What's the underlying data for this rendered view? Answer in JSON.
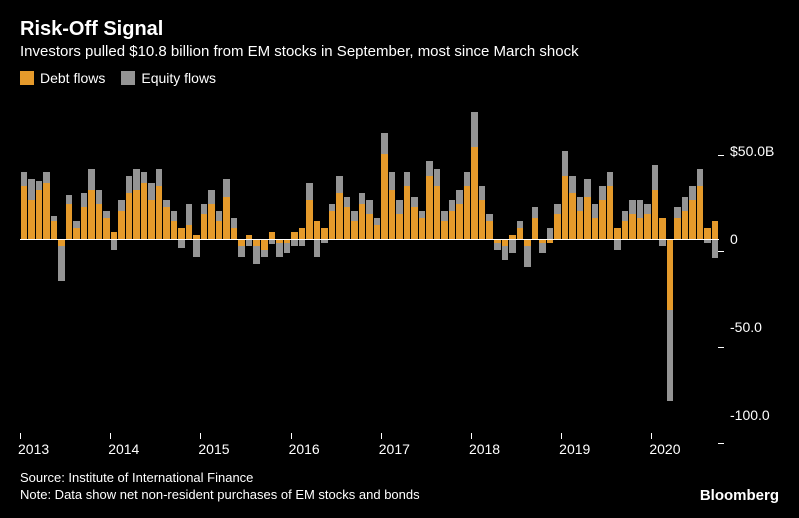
{
  "title": "Risk-Off Signal",
  "subtitle": "Investors pulled $10.8 billion from EM stocks in September, most since March shock",
  "legend": [
    {
      "label": "Debt flows",
      "color": "#e59a2b"
    },
    {
      "label": "Equity flows",
      "color": "#949494"
    }
  ],
  "chart": {
    "type": "stacked-bar",
    "background_color": "#000000",
    "text_color": "#ffffff",
    "bar_gap_pct": 10,
    "ylim": [
      -110,
      80
    ],
    "yticks": [
      {
        "v": 50,
        "label": "$50.0B"
      },
      {
        "v": 0,
        "label": "0"
      },
      {
        "v": -50,
        "label": "-50.0"
      },
      {
        "v": -100,
        "label": "-100.0"
      }
    ],
    "xticks": [
      {
        "index": 0,
        "label": "2013"
      },
      {
        "index": 12,
        "label": "2014"
      },
      {
        "index": 24,
        "label": "2015"
      },
      {
        "index": 36,
        "label": "2016"
      },
      {
        "index": 48,
        "label": "2017"
      },
      {
        "index": 60,
        "label": "2018"
      },
      {
        "index": 72,
        "label": "2019"
      },
      {
        "index": 84,
        "label": "2020"
      }
    ],
    "series_colors": {
      "debt": "#e59a2b",
      "equity": "#949494"
    },
    "points": [
      {
        "debt": 30,
        "equity": 8
      },
      {
        "debt": 22,
        "equity": 12
      },
      {
        "debt": 28,
        "equity": 5
      },
      {
        "debt": 32,
        "equity": 6
      },
      {
        "debt": 10,
        "equity": 3
      },
      {
        "debt": -4,
        "equity": -20
      },
      {
        "debt": 20,
        "equity": 5
      },
      {
        "debt": 6,
        "equity": 4
      },
      {
        "debt": 18,
        "equity": 8
      },
      {
        "debt": 28,
        "equity": 12
      },
      {
        "debt": 20,
        "equity": 8
      },
      {
        "debt": 12,
        "equity": 4
      },
      {
        "debt": 4,
        "equity": -6
      },
      {
        "debt": 16,
        "equity": 6
      },
      {
        "debt": 26,
        "equity": 10
      },
      {
        "debt": 28,
        "equity": 12
      },
      {
        "debt": 32,
        "equity": 6
      },
      {
        "debt": 22,
        "equity": 10
      },
      {
        "debt": 30,
        "equity": 10
      },
      {
        "debt": 18,
        "equity": 4
      },
      {
        "debt": 10,
        "equity": 6
      },
      {
        "debt": 6,
        "equity": -5
      },
      {
        "debt": 8,
        "equity": 12
      },
      {
        "debt": 2,
        "equity": -10
      },
      {
        "debt": 14,
        "equity": 6
      },
      {
        "debt": 20,
        "equity": 8
      },
      {
        "debt": 10,
        "equity": 6
      },
      {
        "debt": 24,
        "equity": 10
      },
      {
        "debt": 6,
        "equity": 6
      },
      {
        "debt": -4,
        "equity": -6
      },
      {
        "debt": 2,
        "equity": -4
      },
      {
        "debt": -4,
        "equity": -10
      },
      {
        "debt": -6,
        "equity": -4
      },
      {
        "debt": 4,
        "equity": -3
      },
      {
        "debt": -2,
        "equity": -8
      },
      {
        "debt": -2,
        "equity": -6
      },
      {
        "debt": 4,
        "equity": -4
      },
      {
        "debt": 6,
        "equity": -4
      },
      {
        "debt": 22,
        "equity": 10
      },
      {
        "debt": 10,
        "equity": -10
      },
      {
        "debt": 6,
        "equity": -2
      },
      {
        "debt": 16,
        "equity": 4
      },
      {
        "debt": 26,
        "equity": 10
      },
      {
        "debt": 18,
        "equity": 6
      },
      {
        "debt": 10,
        "equity": 6
      },
      {
        "debt": 20,
        "equity": 6
      },
      {
        "debt": 14,
        "equity": 8
      },
      {
        "debt": 8,
        "equity": 4
      },
      {
        "debt": 48,
        "equity": 12
      },
      {
        "debt": 28,
        "equity": 10
      },
      {
        "debt": 14,
        "equity": 8
      },
      {
        "debt": 30,
        "equity": 8
      },
      {
        "debt": 18,
        "equity": 6
      },
      {
        "debt": 12,
        "equity": 4
      },
      {
        "debt": 36,
        "equity": 8
      },
      {
        "debt": 30,
        "equity": 10
      },
      {
        "debt": 10,
        "equity": 6
      },
      {
        "debt": 16,
        "equity": 6
      },
      {
        "debt": 20,
        "equity": 8
      },
      {
        "debt": 30,
        "equity": 8
      },
      {
        "debt": 52,
        "equity": 20
      },
      {
        "debt": 22,
        "equity": 8
      },
      {
        "debt": 10,
        "equity": 4
      },
      {
        "debt": -2,
        "equity": -4
      },
      {
        "debt": -4,
        "equity": -8
      },
      {
        "debt": 2,
        "equity": -8
      },
      {
        "debt": 6,
        "equity": 4
      },
      {
        "debt": -4,
        "equity": -12
      },
      {
        "debt": 12,
        "equity": 6
      },
      {
        "debt": -2,
        "equity": -6
      },
      {
        "debt": -2,
        "equity": 6
      },
      {
        "debt": 14,
        "equity": 6
      },
      {
        "debt": 36,
        "equity": 14
      },
      {
        "debt": 26,
        "equity": 10
      },
      {
        "debt": 16,
        "equity": 8
      },
      {
        "debt": 24,
        "equity": 10
      },
      {
        "debt": 12,
        "equity": 8
      },
      {
        "debt": 22,
        "equity": 8
      },
      {
        "debt": 30,
        "equity": 8
      },
      {
        "debt": 6,
        "equity": -6
      },
      {
        "debt": 10,
        "equity": 6
      },
      {
        "debt": 14,
        "equity": 8
      },
      {
        "debt": 12,
        "equity": 10
      },
      {
        "debt": 14,
        "equity": 6
      },
      {
        "debt": 28,
        "equity": 14
      },
      {
        "debt": 12,
        "equity": -4
      },
      {
        "debt": -40,
        "equity": -52
      },
      {
        "debt": 12,
        "equity": 6
      },
      {
        "debt": 16,
        "equity": 8
      },
      {
        "debt": 22,
        "equity": 8
      },
      {
        "debt": 30,
        "equity": 10
      },
      {
        "debt": 6,
        "equity": -2
      },
      {
        "debt": 10,
        "equity": -10.8
      }
    ]
  },
  "source_line": "Source: Institute of International Finance",
  "note_line": "Note: Data show net non-resident purchases of EM stocks and bonds",
  "brand": "Bloomberg"
}
